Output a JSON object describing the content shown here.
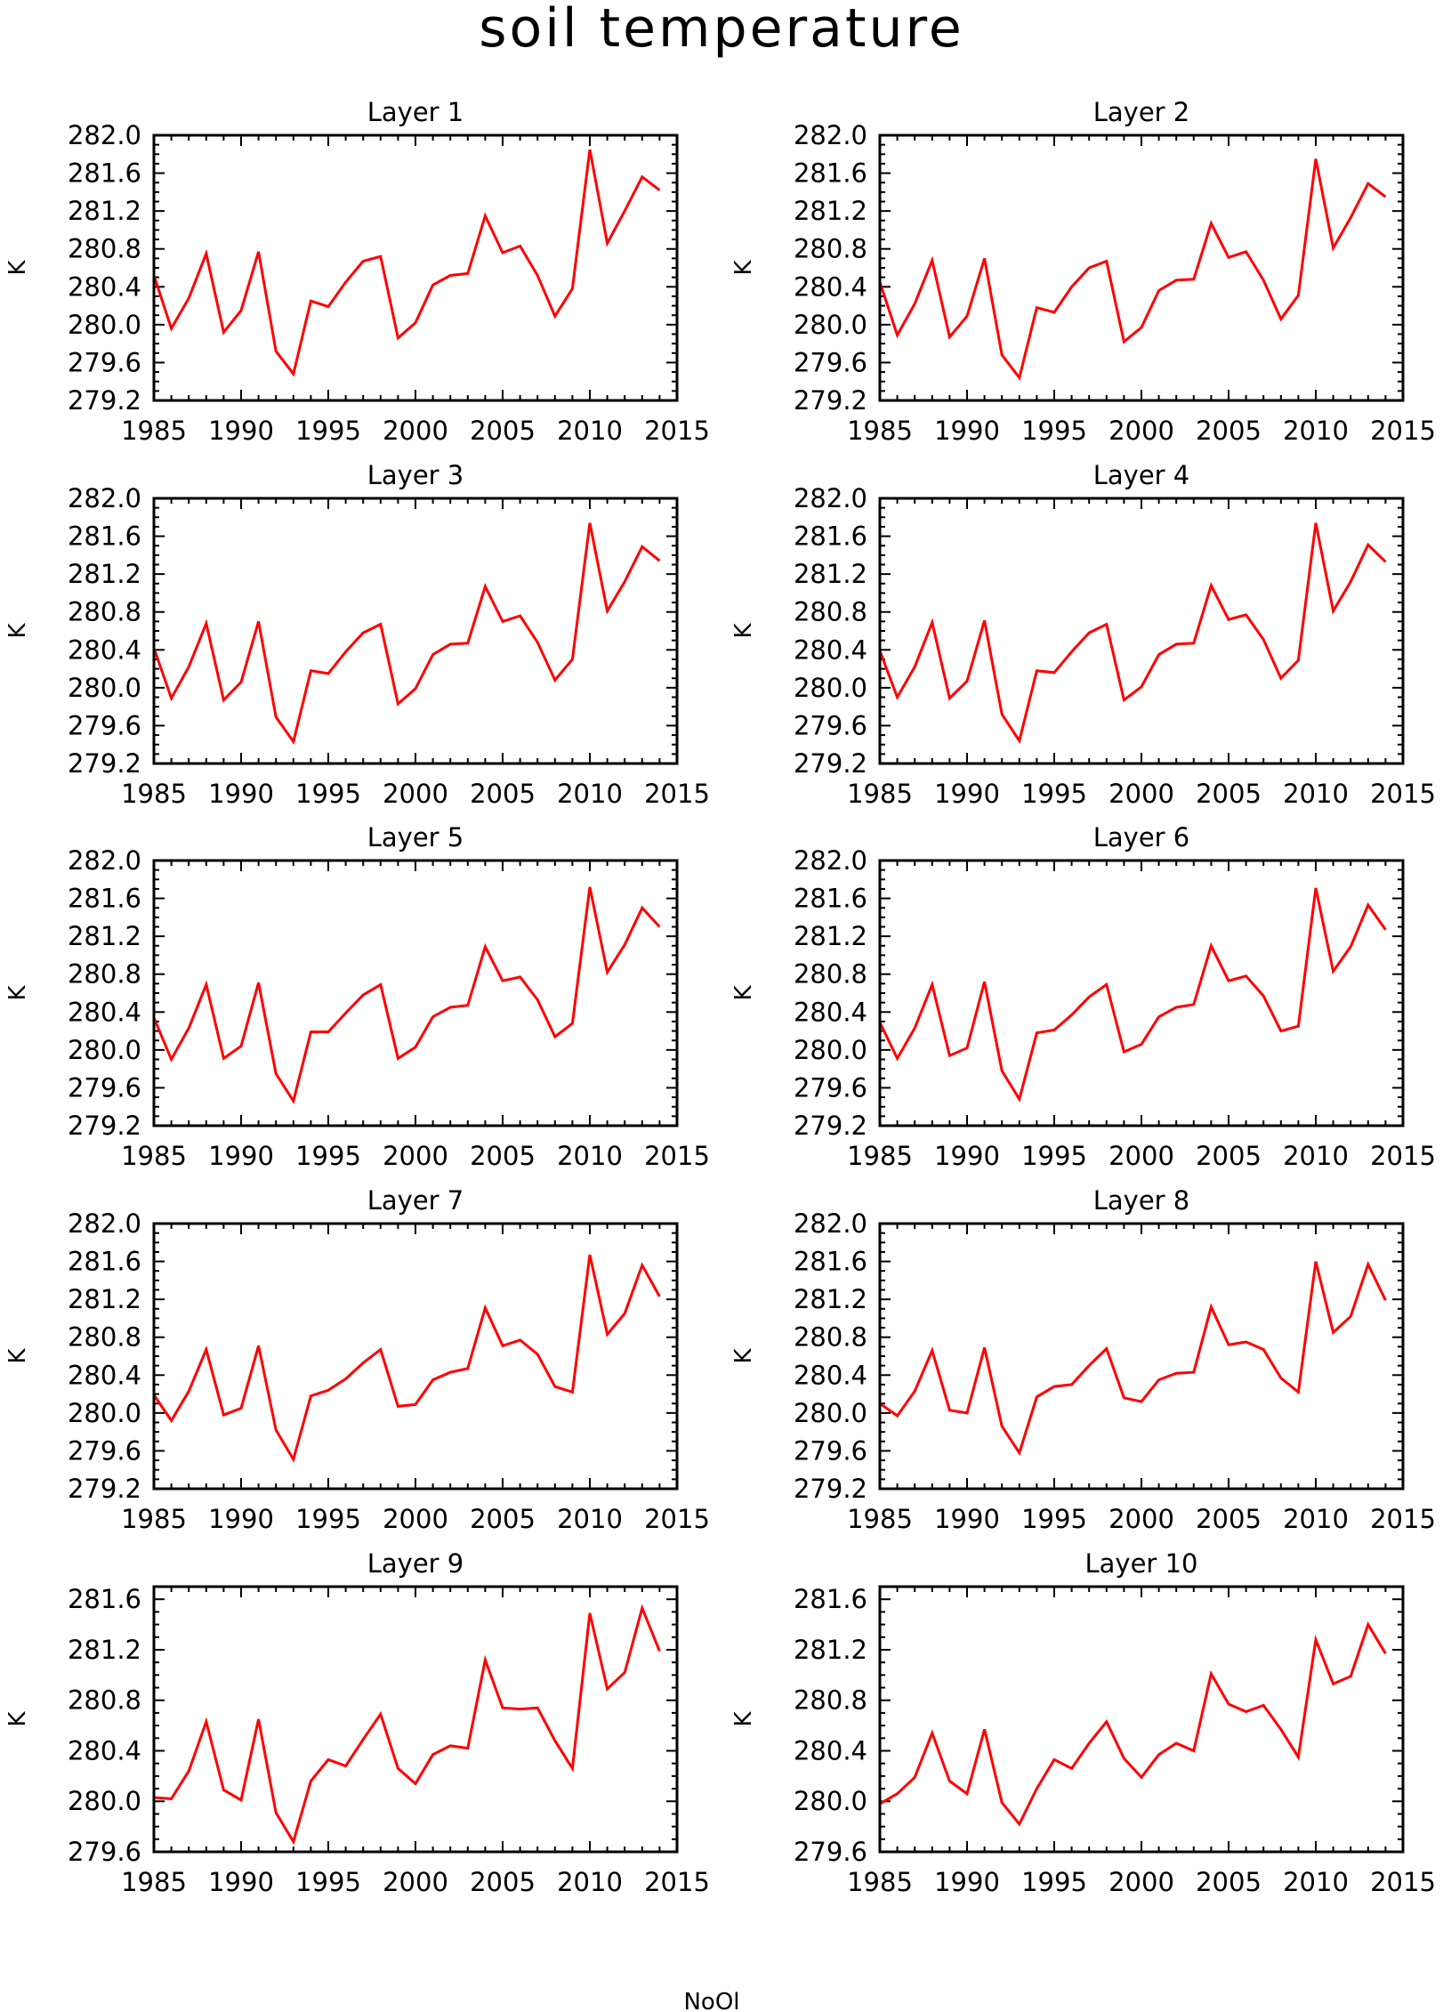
{
  "title": "soil temperature",
  "footer_text": "NoOl",
  "colors": {
    "series": "#ff0000",
    "axis": "#000000",
    "background": "#ffffff"
  },
  "chart_data": [
    {
      "type": "line",
      "title": "Layer 1",
      "ylabel": "K",
      "xlim": [
        1985,
        2015
      ],
      "ylim": [
        279.2,
        282.0
      ],
      "xticks": [
        "1985",
        "1990",
        "1995",
        "2000",
        "2005",
        "2010",
        "2015"
      ],
      "yticks": [
        "279.2",
        "279.6",
        "280.0",
        "280.4",
        "280.8",
        "281.2",
        "281.6",
        "282.0"
      ],
      "x": [
        1985,
        1986,
        1987,
        1988,
        1989,
        1990,
        1991,
        1992,
        1993,
        1994,
        1995,
        1996,
        1997,
        1998,
        1999,
        2000,
        2001,
        2002,
        2003,
        2004,
        2005,
        2006,
        2007,
        2008,
        2009,
        2010,
        2011,
        2012,
        2013,
        2014
      ],
      "series": [
        {
          "values": [
            280.52,
            279.96,
            280.28,
            280.75,
            279.92,
            280.15,
            280.77,
            279.72,
            279.48,
            280.25,
            280.19,
            280.45,
            280.67,
            280.72,
            279.86,
            280.02,
            280.42,
            280.52,
            280.54,
            281.15,
            280.76,
            280.83,
            280.52,
            280.09,
            280.38,
            281.85,
            280.86,
            281.2,
            281.56,
            281.42
          ]
        }
      ]
    },
    {
      "type": "line",
      "title": "Layer 2",
      "ylabel": "K",
      "xlim": [
        1985,
        2015
      ],
      "ylim": [
        279.2,
        282.0
      ],
      "xticks": [
        "1985",
        "1990",
        "1995",
        "2000",
        "2005",
        "2010",
        "2015"
      ],
      "yticks": [
        "279.2",
        "279.6",
        "280.0",
        "280.4",
        "280.8",
        "281.2",
        "281.6",
        "282.0"
      ],
      "x": [
        1985,
        1986,
        1987,
        1988,
        1989,
        1990,
        1991,
        1992,
        1993,
        1994,
        1995,
        1996,
        1997,
        1998,
        1999,
        2000,
        2001,
        2002,
        2003,
        2004,
        2005,
        2006,
        2007,
        2008,
        2009,
        2010,
        2011,
        2012,
        2013,
        2014
      ],
      "series": [
        {
          "values": [
            280.45,
            279.89,
            280.22,
            280.68,
            279.87,
            280.09,
            280.7,
            279.68,
            279.44,
            280.18,
            280.13,
            280.4,
            280.6,
            280.67,
            279.82,
            279.97,
            280.36,
            280.47,
            280.48,
            281.07,
            280.71,
            280.77,
            280.47,
            280.06,
            280.31,
            281.75,
            280.81,
            281.13,
            281.49,
            281.35
          ]
        }
      ]
    },
    {
      "type": "line",
      "title": "Layer 3",
      "ylabel": "K",
      "xlim": [
        1985,
        2015
      ],
      "ylim": [
        279.2,
        282.0
      ],
      "xticks": [
        "1985",
        "1990",
        "1995",
        "2000",
        "2005",
        "2010",
        "2015"
      ],
      "yticks": [
        "279.2",
        "279.6",
        "280.0",
        "280.4",
        "280.8",
        "281.2",
        "281.6",
        "282.0"
      ],
      "x": [
        1985,
        1986,
        1987,
        1988,
        1989,
        1990,
        1991,
        1992,
        1993,
        1994,
        1995,
        1996,
        1997,
        1998,
        1999,
        2000,
        2001,
        2002,
        2003,
        2004,
        2005,
        2006,
        2007,
        2008,
        2009,
        2010,
        2011,
        2012,
        2013,
        2014
      ],
      "series": [
        {
          "values": [
            280.42,
            279.89,
            280.22,
            280.68,
            279.87,
            280.06,
            280.7,
            279.69,
            279.43,
            280.18,
            280.15,
            280.38,
            280.58,
            280.67,
            279.83,
            279.99,
            280.35,
            280.46,
            280.47,
            281.07,
            280.7,
            280.76,
            280.48,
            280.08,
            280.3,
            281.74,
            280.81,
            281.12,
            281.49,
            281.34
          ]
        }
      ]
    },
    {
      "type": "line",
      "title": "Layer 4",
      "ylabel": "K",
      "xlim": [
        1985,
        2015
      ],
      "ylim": [
        279.2,
        282.0
      ],
      "xticks": [
        "1985",
        "1990",
        "1995",
        "2000",
        "2005",
        "2010",
        "2015"
      ],
      "yticks": [
        "279.2",
        "279.6",
        "280.0",
        "280.4",
        "280.8",
        "281.2",
        "281.6",
        "282.0"
      ],
      "x": [
        1985,
        1986,
        1987,
        1988,
        1989,
        1990,
        1991,
        1992,
        1993,
        1994,
        1995,
        1996,
        1997,
        1998,
        1999,
        2000,
        2001,
        2002,
        2003,
        2004,
        2005,
        2006,
        2007,
        2008,
        2009,
        2010,
        2011,
        2012,
        2013,
        2014
      ],
      "series": [
        {
          "values": [
            280.39,
            279.9,
            280.22,
            280.69,
            279.89,
            280.07,
            280.71,
            279.72,
            279.44,
            280.18,
            280.16,
            280.38,
            280.58,
            280.67,
            279.87,
            280.01,
            280.35,
            280.46,
            280.47,
            281.08,
            280.72,
            280.77,
            280.51,
            280.1,
            280.29,
            281.74,
            280.81,
            281.12,
            281.51,
            281.33
          ]
        }
      ]
    },
    {
      "type": "line",
      "title": "Layer 5",
      "ylabel": "K",
      "xlim": [
        1985,
        2015
      ],
      "ylim": [
        279.2,
        282.0
      ],
      "xticks": [
        "1985",
        "1990",
        "1995",
        "2000",
        "2005",
        "2010",
        "2015"
      ],
      "yticks": [
        "279.2",
        "279.6",
        "280.0",
        "280.4",
        "280.8",
        "281.2",
        "281.6",
        "282.0"
      ],
      "x": [
        1985,
        1986,
        1987,
        1988,
        1989,
        1990,
        1991,
        1992,
        1993,
        1994,
        1995,
        1996,
        1997,
        1998,
        1999,
        2000,
        2001,
        2002,
        2003,
        2004,
        2005,
        2006,
        2007,
        2008,
        2009,
        2010,
        2011,
        2012,
        2013,
        2014
      ],
      "series": [
        {
          "values": [
            280.34,
            279.9,
            280.23,
            280.69,
            279.91,
            280.04,
            280.71,
            279.75,
            279.46,
            280.19,
            280.19,
            280.39,
            280.58,
            280.69,
            279.91,
            280.03,
            280.35,
            280.45,
            280.47,
            281.09,
            280.73,
            280.77,
            280.53,
            280.14,
            280.28,
            281.72,
            280.82,
            281.11,
            281.5,
            281.3
          ]
        }
      ]
    },
    {
      "type": "line",
      "title": "Layer 6",
      "ylabel": "K",
      "xlim": [
        1985,
        2015
      ],
      "ylim": [
        279.2,
        282.0
      ],
      "xticks": [
        "1985",
        "1990",
        "1995",
        "2000",
        "2005",
        "2010",
        "2015"
      ],
      "yticks": [
        "279.2",
        "279.6",
        "280.0",
        "280.4",
        "280.8",
        "281.2",
        "281.6",
        "282.0"
      ],
      "x": [
        1985,
        1986,
        1987,
        1988,
        1989,
        1990,
        1991,
        1992,
        1993,
        1994,
        1995,
        1996,
        1997,
        1998,
        1999,
        2000,
        2001,
        2002,
        2003,
        2004,
        2005,
        2006,
        2007,
        2008,
        2009,
        2010,
        2011,
        2012,
        2013,
        2014
      ],
      "series": [
        {
          "values": [
            280.29,
            279.91,
            280.23,
            280.69,
            279.94,
            280.02,
            280.72,
            279.78,
            279.48,
            280.18,
            280.21,
            280.37,
            280.56,
            280.69,
            279.98,
            280.06,
            280.35,
            280.45,
            280.48,
            281.1,
            280.73,
            280.78,
            280.57,
            280.2,
            280.25,
            281.71,
            280.83,
            281.09,
            281.53,
            281.27
          ]
        }
      ]
    },
    {
      "type": "line",
      "title": "Layer 7",
      "ylabel": "K",
      "xlim": [
        1985,
        2015
      ],
      "ylim": [
        279.2,
        282.0
      ],
      "xticks": [
        "1985",
        "1990",
        "1995",
        "2000",
        "2005",
        "2010",
        "2015"
      ],
      "yticks": [
        "279.2",
        "279.6",
        "280.0",
        "280.4",
        "280.8",
        "281.2",
        "281.6",
        "282.0"
      ],
      "x": [
        1985,
        1986,
        1987,
        1988,
        1989,
        1990,
        1991,
        1992,
        1993,
        1994,
        1995,
        1996,
        1997,
        1998,
        1999,
        2000,
        2001,
        2002,
        2003,
        2004,
        2005,
        2006,
        2007,
        2008,
        2009,
        2010,
        2011,
        2012,
        2013,
        2014
      ],
      "series": [
        {
          "values": [
            280.19,
            279.92,
            280.23,
            280.67,
            279.98,
            280.05,
            280.71,
            279.82,
            279.51,
            280.18,
            280.24,
            280.36,
            280.53,
            280.67,
            280.07,
            280.09,
            280.35,
            280.43,
            280.47,
            281.11,
            280.71,
            280.77,
            280.62,
            280.28,
            280.22,
            281.67,
            280.83,
            281.05,
            281.56,
            281.23
          ]
        }
      ]
    },
    {
      "type": "line",
      "title": "Layer 8",
      "ylabel": "K",
      "xlim": [
        1985,
        2015
      ],
      "ylim": [
        279.2,
        282.0
      ],
      "xticks": [
        "1985",
        "1990",
        "1995",
        "2000",
        "2005",
        "2010",
        "2015"
      ],
      "yticks": [
        "279.2",
        "279.6",
        "280.0",
        "280.4",
        "280.8",
        "281.2",
        "281.6",
        "282.0"
      ],
      "x": [
        1985,
        1986,
        1987,
        1988,
        1989,
        1990,
        1991,
        1992,
        1993,
        1994,
        1995,
        1996,
        1997,
        1998,
        1999,
        2000,
        2001,
        2002,
        2003,
        2004,
        2005,
        2006,
        2007,
        2008,
        2009,
        2010,
        2011,
        2012,
        2013,
        2014
      ],
      "series": [
        {
          "values": [
            280.1,
            279.97,
            280.23,
            280.66,
            280.03,
            280.0,
            280.69,
            279.86,
            279.58,
            280.17,
            280.28,
            280.3,
            280.5,
            280.68,
            280.16,
            280.12,
            280.35,
            280.42,
            280.43,
            281.12,
            280.72,
            280.75,
            280.67,
            280.37,
            280.22,
            281.6,
            280.85,
            281.02,
            281.57,
            281.19
          ]
        }
      ]
    },
    {
      "type": "line",
      "title": "Layer 9",
      "ylabel": "K",
      "xlim": [
        1985,
        2015
      ],
      "ylim": [
        279.6,
        281.7
      ],
      "xticks": [
        "1985",
        "1990",
        "1995",
        "2000",
        "2005",
        "2010",
        "2015"
      ],
      "yticks": [
        "279.6",
        "280.0",
        "280.4",
        "280.8",
        "281.2",
        "281.6"
      ],
      "x": [
        1985,
        1986,
        1987,
        1988,
        1989,
        1990,
        1991,
        1992,
        1993,
        1994,
        1995,
        1996,
        1997,
        1998,
        1999,
        2000,
        2001,
        2002,
        2003,
        2004,
        2005,
        2006,
        2007,
        2008,
        2009,
        2010,
        2011,
        2012,
        2013,
        2014
      ],
      "series": [
        {
          "values": [
            280.03,
            280.02,
            280.24,
            280.63,
            280.09,
            280.01,
            280.65,
            279.91,
            279.68,
            280.16,
            280.33,
            280.28,
            280.49,
            280.69,
            280.26,
            280.14,
            280.37,
            280.44,
            280.42,
            281.12,
            280.74,
            280.73,
            280.74,
            280.48,
            280.26,
            281.49,
            280.89,
            281.02,
            281.53,
            281.19
          ]
        }
      ]
    },
    {
      "type": "line",
      "title": "Layer 10",
      "ylabel": "K",
      "xlim": [
        1985,
        2015
      ],
      "ylim": [
        279.6,
        281.7
      ],
      "xticks": [
        "1985",
        "1990",
        "1995",
        "2000",
        "2005",
        "2010",
        "2015"
      ],
      "yticks": [
        "279.6",
        "280.0",
        "280.4",
        "280.8",
        "281.2",
        "281.6"
      ],
      "x": [
        1985,
        1986,
        1987,
        1988,
        1989,
        1990,
        1991,
        1992,
        1993,
        1994,
        1995,
        1996,
        1997,
        1998,
        1999,
        2000,
        2001,
        2002,
        2003,
        2004,
        2005,
        2006,
        2007,
        2008,
        2009,
        2010,
        2011,
        2012,
        2013,
        2014
      ],
      "series": [
        {
          "values": [
            279.98,
            280.06,
            280.19,
            280.54,
            280.16,
            280.06,
            280.57,
            279.99,
            279.82,
            280.1,
            280.33,
            280.26,
            280.46,
            280.63,
            280.34,
            280.19,
            280.37,
            280.46,
            280.4,
            281.01,
            280.77,
            280.71,
            280.76,
            280.57,
            280.35,
            281.28,
            280.93,
            280.99,
            281.4,
            281.17
          ]
        }
      ]
    }
  ]
}
